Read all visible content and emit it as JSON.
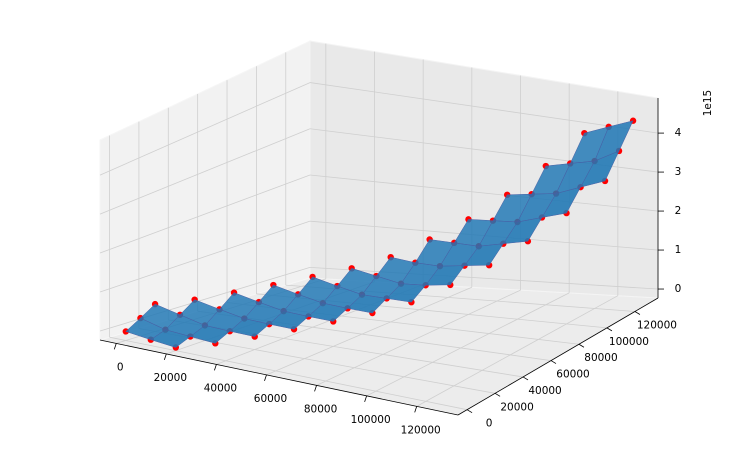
{
  "chart_data": {
    "type": "surface",
    "x": [
      0,
      10000,
      20000,
      30000,
      40000,
      50000,
      60000,
      70000,
      80000,
      90000,
      100000,
      110000,
      120000,
      130000
    ],
    "y": [
      0,
      10000,
      20000,
      30000,
      40000,
      50000,
      60000,
      70000,
      80000,
      90000,
      100000,
      110000,
      120000,
      130000
    ],
    "z": [
      [
        0,
        0.22,
        0.45,
        null,
        null,
        null,
        null,
        null,
        null,
        null,
        null,
        null,
        null,
        null
      ],
      [
        -0.08,
        0.05,
        0.3,
        0.55,
        null,
        null,
        null,
        null,
        null,
        null,
        null,
        null,
        null,
        null
      ],
      [
        -0.15,
        0.0,
        0.15,
        0.42,
        0.7,
        null,
        null,
        null,
        null,
        null,
        null,
        null,
        null,
        null
      ],
      [
        null,
        -0.05,
        0.12,
        0.3,
        0.57,
        0.85,
        null,
        null,
        null,
        null,
        null,
        null,
        null,
        null
      ],
      [
        null,
        null,
        0.1,
        0.27,
        0.45,
        0.72,
        1.0,
        null,
        null,
        null,
        null,
        null,
        null,
        null
      ],
      [
        null,
        null,
        null,
        0.25,
        0.42,
        0.6,
        0.87,
        1.15,
        null,
        null,
        null,
        null,
        null,
        null
      ],
      [
        null,
        null,
        null,
        null,
        0.4,
        0.57,
        0.75,
        1.05,
        1.35,
        null,
        null,
        null,
        null,
        null
      ],
      [
        null,
        null,
        null,
        null,
        null,
        0.55,
        0.75,
        0.95,
        1.3,
        1.7,
        null,
        null,
        null,
        null
      ],
      [
        null,
        null,
        null,
        null,
        null,
        null,
        0.75,
        1.0,
        1.3,
        1.7,
        2.1,
        null,
        null,
        null
      ],
      [
        null,
        null,
        null,
        null,
        null,
        null,
        null,
        1.1,
        1.4,
        1.7,
        2.15,
        2.6,
        null,
        null
      ],
      [
        null,
        null,
        null,
        null,
        null,
        null,
        null,
        null,
        1.5,
        1.85,
        2.2,
        2.7,
        3.2,
        null
      ],
      [
        null,
        null,
        null,
        null,
        null,
        null,
        null,
        null,
        null,
        2.0,
        2.4,
        2.8,
        3.35,
        3.9
      ],
      [
        null,
        null,
        null,
        null,
        null,
        null,
        null,
        null,
        null,
        null,
        2.6,
        3.05,
        3.5,
        4.15
      ],
      [
        null,
        null,
        null,
        null,
        null,
        null,
        null,
        null,
        null,
        null,
        null,
        3.3,
        3.85,
        4.4
      ]
    ],
    "xlim": [
      -6500,
      136500
    ],
    "ylim": [
      -6500,
      136500
    ],
    "zlim": [
      -0.23,
      4.9
    ],
    "xticks": [
      0,
      20000,
      40000,
      60000,
      80000,
      100000,
      120000
    ],
    "yticks": [
      0,
      20000,
      40000,
      60000,
      80000,
      100000,
      120000
    ],
    "zticks": [
      0,
      1,
      2,
      3,
      4
    ],
    "z_offset_label": "1e15",
    "surface_color": "#1f77b4",
    "point_color": "#ff0000",
    "grid": true
  }
}
